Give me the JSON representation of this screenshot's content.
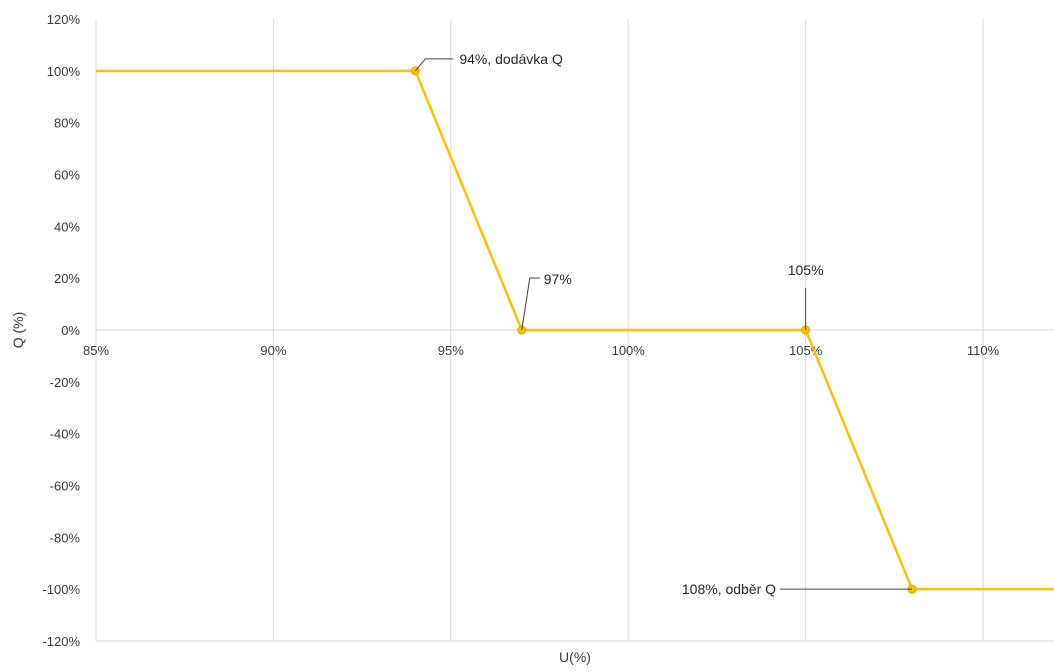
{
  "chart_data": {
    "type": "line",
    "xlabel": "U(%)",
    "ylabel": "Q (%)",
    "xlim": [
      85,
      112
    ],
    "ylim": [
      -120,
      120
    ],
    "x_ticks": [
      85,
      90,
      95,
      100,
      105,
      110
    ],
    "x_tick_labels": [
      "85%",
      "90%",
      "95%",
      "100%",
      "105%",
      "110%"
    ],
    "y_ticks": [
      120,
      100,
      80,
      60,
      40,
      20,
      0,
      -20,
      -40,
      -60,
      -80,
      -100,
      -120
    ],
    "y_tick_labels": [
      "120%",
      "100%",
      "80%",
      "60%",
      "40%",
      "20%",
      "0%",
      "-20%",
      "-40%",
      "-60%",
      "-80%",
      "-100%",
      "-120%"
    ],
    "grid": "vertical",
    "legend": "none",
    "line_color": "#FFC000",
    "series": [
      {
        "x": [
          85,
          94,
          97,
          105,
          108,
          112
        ],
        "y": [
          100,
          100,
          0,
          0,
          -100,
          -100
        ]
      }
    ],
    "markers": [
      {
        "x": 94,
        "y": 100
      },
      {
        "x": 97,
        "y": 0
      },
      {
        "x": 105,
        "y": 0
      },
      {
        "x": 108,
        "y": -100
      }
    ],
    "annotations": [
      {
        "x": 94,
        "y": 100,
        "text": "94%, dodávka Q"
      },
      {
        "x": 97,
        "y": 0,
        "text": "97%"
      },
      {
        "x": 105,
        "y": 0,
        "text": "105%"
      },
      {
        "x": 108,
        "y": -100,
        "text": "108%, odběr Q"
      }
    ]
  }
}
